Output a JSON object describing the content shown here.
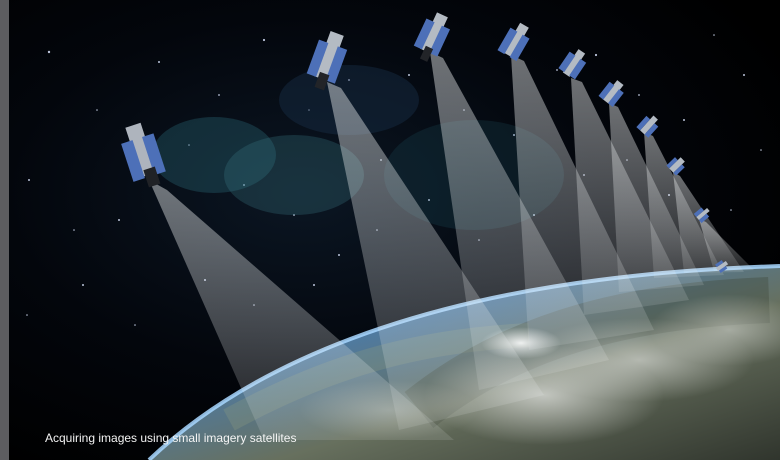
{
  "caption": "Acquiring images using small imagery satellites",
  "colors": {
    "space": "#030407",
    "earth_blue": "#6fa0d2",
    "earth_land": "#5d6452",
    "beam": "#e8eef0",
    "satellite_panel": "#4d70b8",
    "caption_text": "#f4f4f4"
  },
  "scene": {
    "object_names": [
      "satellite-icon",
      "earth-horizon",
      "light-beam",
      "cloud-cover",
      "star-field"
    ]
  }
}
